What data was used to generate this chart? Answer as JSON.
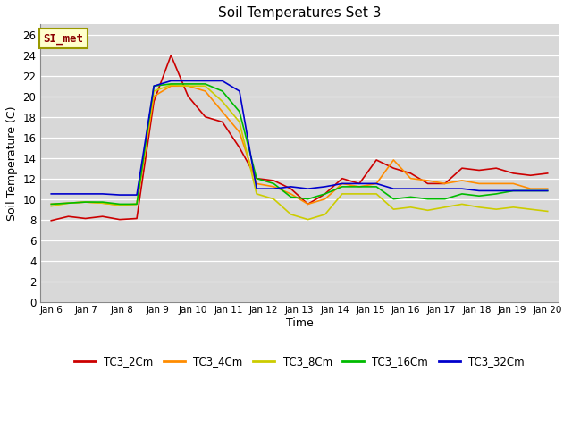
{
  "title": "Soil Temperatures Set 3",
  "xlabel": "Time",
  "ylabel": "Soil Temperature (C)",
  "fig_bg_color": "#ffffff",
  "plot_bg_color": "#d8d8d8",
  "annotation_text": "SI_met",
  "annotation_color": "#8B0000",
  "annotation_bg": "#ffffcc",
  "annotation_border": "#999900",
  "ylim": [
    0,
    27
  ],
  "yticks": [
    0,
    2,
    4,
    6,
    8,
    10,
    12,
    14,
    16,
    18,
    20,
    22,
    24,
    26
  ],
  "x_labels": [
    "Jan 6",
    "Jan 7",
    "Jan 8",
    "Jan 9",
    "Jan 10",
    "Jan 11",
    "Jan 12",
    "Jan 13",
    "Jan 14",
    "Jan 15",
    "Jan 16",
    "Jan 17",
    "Jan 18",
    "Jan 19",
    "Jan 20"
  ],
  "series": {
    "TC3_2Cm": {
      "color": "#cc0000",
      "data": [
        7.9,
        8.3,
        8.1,
        8.3,
        8.0,
        8.1,
        19.5,
        24.0,
        20.0,
        18.0,
        17.5,
        15.0,
        12.0,
        11.8,
        11.0,
        9.5,
        10.5,
        12.0,
        11.5,
        13.8,
        13.0,
        12.5,
        11.5,
        11.5,
        13.0,
        12.8,
        13.0,
        12.5,
        12.3,
        12.5
      ]
    },
    "TC3_4Cm": {
      "color": "#ff8c00",
      "data": [
        9.5,
        9.6,
        9.7,
        9.6,
        9.4,
        9.5,
        20.0,
        21.0,
        21.0,
        20.5,
        18.5,
        16.5,
        11.5,
        11.2,
        10.5,
        9.5,
        10.0,
        11.5,
        11.2,
        11.5,
        13.8,
        12.0,
        11.8,
        11.5,
        11.8,
        11.5,
        11.5,
        11.5,
        11.0,
        11.0
      ]
    },
    "TC3_8Cm": {
      "color": "#cccc00",
      "data": [
        9.3,
        9.6,
        9.7,
        9.6,
        9.4,
        9.5,
        20.5,
        21.1,
        21.0,
        21.0,
        19.5,
        17.5,
        10.5,
        10.0,
        8.5,
        8.0,
        8.5,
        10.5,
        10.5,
        10.5,
        9.0,
        9.2,
        8.9,
        9.2,
        9.5,
        9.2,
        9.0,
        9.2,
        9.0,
        8.8
      ]
    },
    "TC3_16Cm": {
      "color": "#00bb00",
      "data": [
        9.5,
        9.6,
        9.7,
        9.7,
        9.5,
        9.5,
        21.0,
        21.2,
        21.2,
        21.2,
        20.5,
        18.5,
        12.0,
        11.5,
        10.2,
        10.0,
        10.5,
        11.2,
        11.2,
        11.2,
        10.0,
        10.2,
        10.0,
        10.0,
        10.5,
        10.3,
        10.5,
        10.8,
        10.8,
        10.8
      ]
    },
    "TC3_32Cm": {
      "color": "#0000cc",
      "data": [
        10.5,
        10.5,
        10.5,
        10.5,
        10.4,
        10.4,
        21.0,
        21.5,
        21.5,
        21.5,
        21.5,
        20.5,
        11.0,
        11.0,
        11.2,
        11.0,
        11.2,
        11.5,
        11.5,
        11.5,
        11.0,
        11.0,
        11.0,
        11.0,
        11.0,
        10.8,
        10.8,
        10.8,
        10.8,
        10.8
      ]
    }
  }
}
